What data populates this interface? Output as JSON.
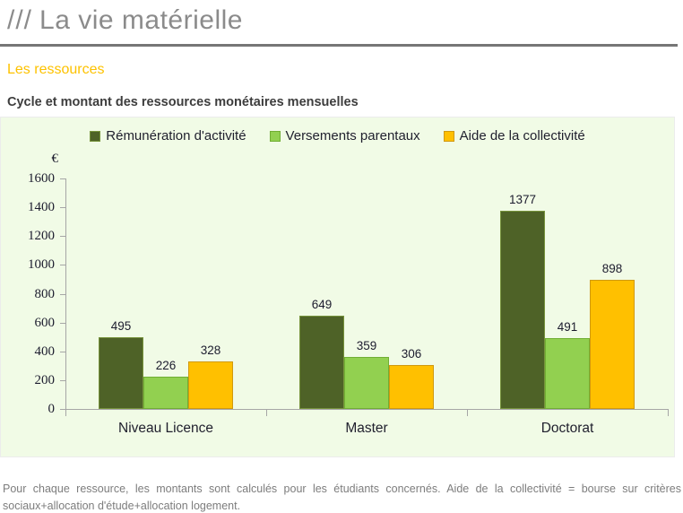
{
  "header": {
    "slashes": "///",
    "title": "La vie matérielle"
  },
  "section": {
    "label": "Les ressources"
  },
  "chart_title": "Cycle et montant des ressources monétaires mensuelles",
  "chart_data": {
    "type": "bar",
    "title": "Cycle et montant des ressources monétaires mensuelles",
    "unit_label": "€",
    "categories": [
      "Niveau Licence",
      "Master",
      "Doctorat"
    ],
    "series": [
      {
        "name": "Rémunération d'activité",
        "color": "#4e6227",
        "border": "#77933c",
        "values": [
          495,
          649,
          1377
        ]
      },
      {
        "name": "Versements parentaux",
        "color": "#92d050",
        "border": "#71ae34",
        "values": [
          226,
          359,
          491
        ]
      },
      {
        "name": "Aide de la collectivité",
        "color": "#ffc000",
        "border": "#d0990f",
        "values": [
          328,
          306,
          898
        ]
      }
    ],
    "ylim": [
      0,
      1600
    ],
    "ytick_step": 200,
    "grid": false,
    "legend_position": "top",
    "plot_bg": "#f1fbe6",
    "axis_color": "#a6a6a6"
  },
  "footnote": {
    "lines": [
      "Pour chaque ressource, les montants sont calculés pour les étudiants concernés. Aide de la collectivité = bourse sur critères",
      "sociaux+allocation d'étude+allocation logement."
    ],
    "full_text": "Pour chaque ressource, les montants sont calculés pour les étudiants concernés. Aide de la collectivité = bourse sur critères sociaux+allocation d'étude+allocation logement."
  }
}
